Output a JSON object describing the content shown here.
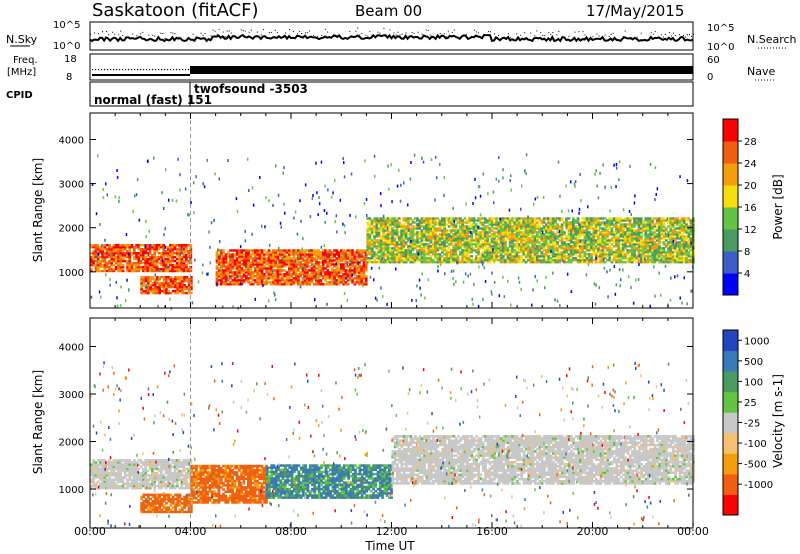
{
  "header": {
    "station": "Saskatoon (fitACF)",
    "beam": "Beam 00",
    "date": "17/May/2015"
  },
  "meta_rows": {
    "nsky_label": "N.Sky",
    "nsearch_label": "N.Search",
    "freq_label_1": "Freq.",
    "freq_label_2": "[MHz]",
    "nave_label": "Nave",
    "cpid_label": "CPID",
    "cpid_1": "normal (fast) 151",
    "cpid_2": "twofsound -3503",
    "left_top_tick": "10^5",
    "left_bottom_tick": "10^0",
    "right_top_tick": "10^5",
    "right_bottom_tick": "10^0",
    "freq_ticks": [
      "18",
      "8"
    ],
    "nave_ticks": [
      "60",
      "0"
    ]
  },
  "axes": {
    "ylabel": "Slant Range [km]",
    "xlabel": "Time UT",
    "x_ticks": [
      "00:00",
      "04:00",
      "08:00",
      "12:00",
      "16:00",
      "20:00",
      "00:00"
    ],
    "y_ticks": [
      "1000",
      "2000",
      "3000",
      "4000"
    ]
  },
  "chart_data": [
    {
      "type": "heatmap",
      "name": "power",
      "xlabel": "Time UT",
      "ylabel": "Slant Range [km]",
      "xlim": [
        0,
        24
      ],
      "ylim": [
        180,
        4600
      ],
      "colorbar": {
        "label": "Power [dB]",
        "ticks": [
          "28",
          "24",
          "20",
          "16",
          "12",
          "8",
          "4"
        ],
        "colors": [
          "#0000ff",
          "#3d5ec8",
          "#4a9a62",
          "#63c445",
          "#f5e00d",
          "#f59d0d",
          "#f06010",
          "#ff0000"
        ]
      },
      "features": [
        {
          "time": [
            0,
            4
          ],
          "range": [
            1000,
            1600
          ],
          "level": "high"
        },
        {
          "time": [
            2,
            4
          ],
          "range": [
            500,
            900
          ],
          "level": "high"
        },
        {
          "time": [
            5,
            11
          ],
          "range": [
            700,
            1500
          ],
          "level": "high"
        },
        {
          "time": [
            11,
            24
          ],
          "range": [
            1200,
            2200
          ],
          "level": "medium"
        }
      ]
    },
    {
      "type": "heatmap",
      "name": "velocity",
      "xlabel": "Time UT",
      "ylabel": "Slant Range [km]",
      "xlim": [
        0,
        24
      ],
      "ylim": [
        180,
        4600
      ],
      "colorbar": {
        "label": "Velocity [m s-1]",
        "ticks": [
          "1000",
          "500",
          "100",
          "25",
          "-25",
          "-100",
          "-500",
          "-1000"
        ],
        "colors": [
          "#2545c0",
          "#3a7ab8",
          "#4a9a62",
          "#63c445",
          "#c8c8c8",
          "#f5c070",
          "#f59d0d",
          "#f06010",
          "#ff0000"
        ]
      },
      "features": [
        {
          "time": [
            0,
            4
          ],
          "range": [
            1000,
            1600
          ],
          "value": "near zero (gray)"
        },
        {
          "time": [
            2,
            4
          ],
          "range": [
            500,
            900
          ],
          "value": "negative (orange)"
        },
        {
          "time": [
            4,
            7
          ],
          "range": [
            700,
            1500
          ],
          "value": "negative (orange)"
        },
        {
          "time": [
            7,
            12
          ],
          "range": [
            800,
            1500
          ],
          "value": "positive (blue/green)"
        },
        {
          "time": [
            12,
            24
          ],
          "range": [
            1100,
            2100
          ],
          "value": "near zero (gray)"
        }
      ]
    }
  ]
}
